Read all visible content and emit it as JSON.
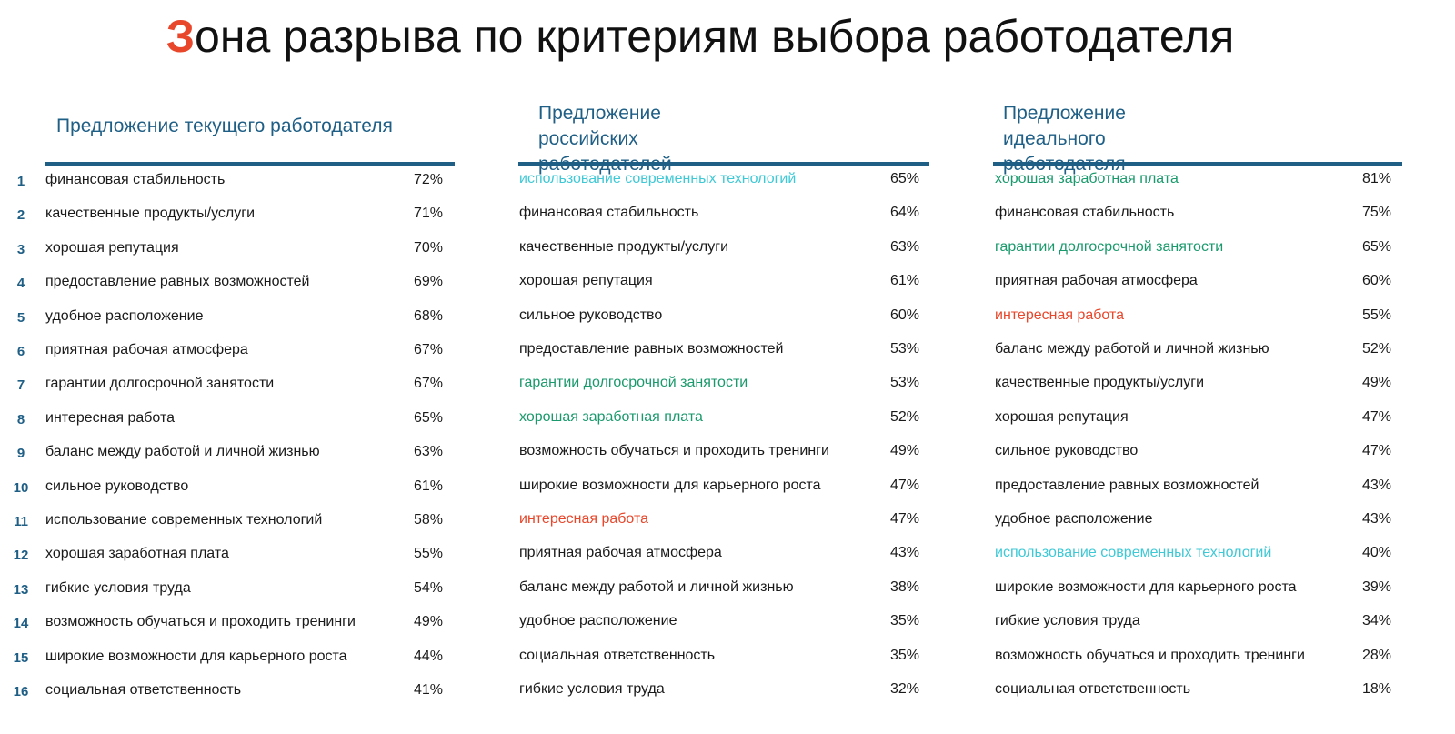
{
  "title": {
    "first_letter": "З",
    "rest": "она разрыва по критериям выбора работодателя"
  },
  "colors": {
    "accent_red": "#e8472b",
    "header_blue": "#1f5f86",
    "cyan": "#3ec9d6",
    "green": "#1a9a6c",
    "default": "#1a1a1a"
  },
  "ranks": [
    "1",
    "2",
    "3",
    "4",
    "5",
    "6",
    "7",
    "8",
    "9",
    "10",
    "11",
    "12",
    "13",
    "14",
    "15",
    "16"
  ],
  "columns": [
    {
      "heading": "Предложение текущего работодателя",
      "rows": [
        {
          "label": "финансовая стабильность",
          "value": "72%",
          "color": "default"
        },
        {
          "label": "качественные продукты/услуги",
          "value": "71%",
          "color": "default"
        },
        {
          "label": "хорошая репутация",
          "value": "70%",
          "color": "default"
        },
        {
          "label": "предоставление равных возможностей",
          "value": "69%",
          "color": "default"
        },
        {
          "label": "удобное расположение",
          "value": "68%",
          "color": "default"
        },
        {
          "label": "приятная рабочая атмосфера",
          "value": "67%",
          "color": "default"
        },
        {
          "label": "гарантии долгосрочной занятости",
          "value": "67%",
          "color": "default"
        },
        {
          "label": "интересная работа",
          "value": "65%",
          "color": "default"
        },
        {
          "label": "баланс между работой и личной жизнью",
          "value": "63%",
          "color": "default"
        },
        {
          "label": "сильное руководство",
          "value": "61%",
          "color": "default"
        },
        {
          "label": "использование современных технологий",
          "value": "58%",
          "color": "default"
        },
        {
          "label": "хорошая заработная плата",
          "value": "55%",
          "color": "default"
        },
        {
          "label": "гибкие условия труда",
          "value": "54%",
          "color": "default"
        },
        {
          "label": "возможность обучаться и проходить тренинги",
          "value": "49%",
          "color": "default"
        },
        {
          "label": "широкие возможности для карьерного роста",
          "value": "44%",
          "color": "default"
        },
        {
          "label": "социальная ответственность",
          "value": "41%",
          "color": "default"
        }
      ]
    },
    {
      "heading_line1": "Предложение российских",
      "heading_line2": "работодателей",
      "rows": [
        {
          "label": "использование современных технологий",
          "value": "65%",
          "color": "cyan"
        },
        {
          "label": "финансовая стабильность",
          "value": "64%",
          "color": "default"
        },
        {
          "label": "качественные продукты/услуги",
          "value": "63%",
          "color": "default"
        },
        {
          "label": "хорошая репутация",
          "value": "61%",
          "color": "default"
        },
        {
          "label": "сильное руководство",
          "value": "60%",
          "color": "default"
        },
        {
          "label": "предоставление равных возможностей",
          "value": "53%",
          "color": "default"
        },
        {
          "label": "гарантии долгосрочной занятости",
          "value": "53%",
          "color": "green"
        },
        {
          "label": "хорошая заработная плата",
          "value": "52%",
          "color": "green"
        },
        {
          "label": "возможность обучаться и проходить тренинги",
          "value": "49%",
          "color": "default"
        },
        {
          "label": "широкие возможности для карьерного роста",
          "value": "47%",
          "color": "default"
        },
        {
          "label": "интересная работа",
          "value": "47%",
          "color": "red"
        },
        {
          "label": "приятная рабочая атмосфера",
          "value": "43%",
          "color": "default"
        },
        {
          "label": "баланс между работой и личной жизнью",
          "value": "38%",
          "color": "default"
        },
        {
          "label": "удобное расположение",
          "value": "35%",
          "color": "default"
        },
        {
          "label": "социальная ответственность",
          "value": "35%",
          "color": "default"
        },
        {
          "label": "гибкие условия труда",
          "value": "32%",
          "color": "default"
        }
      ]
    },
    {
      "heading_line1": "Предложение идеального",
      "heading_line2": "работодателя",
      "rows": [
        {
          "label": "хорошая заработная плата",
          "value": "81%",
          "color": "green"
        },
        {
          "label": "финансовая стабильность",
          "value": "75%",
          "color": "default"
        },
        {
          "label": "гарантии долгосрочной занятости",
          "value": "65%",
          "color": "green"
        },
        {
          "label": "приятная рабочая атмосфера",
          "value": "60%",
          "color": "default"
        },
        {
          "label": "интересная работа",
          "value": "55%",
          "color": "red"
        },
        {
          "label": "баланс между работой и личной жизнью",
          "value": "52%",
          "color": "default"
        },
        {
          "label": "качественные продукты/услуги",
          "value": "49%",
          "color": "default"
        },
        {
          "label": "хорошая репутация",
          "value": "47%",
          "color": "default"
        },
        {
          "label": "сильное руководство",
          "value": "47%",
          "color": "default"
        },
        {
          "label": "предоставление равных возможностей",
          "value": "43%",
          "color": "default"
        },
        {
          "label": "удобное расположение",
          "value": "43%",
          "color": "default"
        },
        {
          "label": "использование современных технологий",
          "value": "40%",
          "color": "cyan"
        },
        {
          "label": "широкие возможности для карьерного роста",
          "value": "39%",
          "color": "default"
        },
        {
          "label": "гибкие условия труда",
          "value": "34%",
          "color": "default"
        },
        {
          "label": "возможность обучаться и проходить тренинги",
          "value": "28%",
          "color": "default"
        },
        {
          "label": "социальная ответственность",
          "value": "18%",
          "color": "default"
        }
      ]
    }
  ]
}
